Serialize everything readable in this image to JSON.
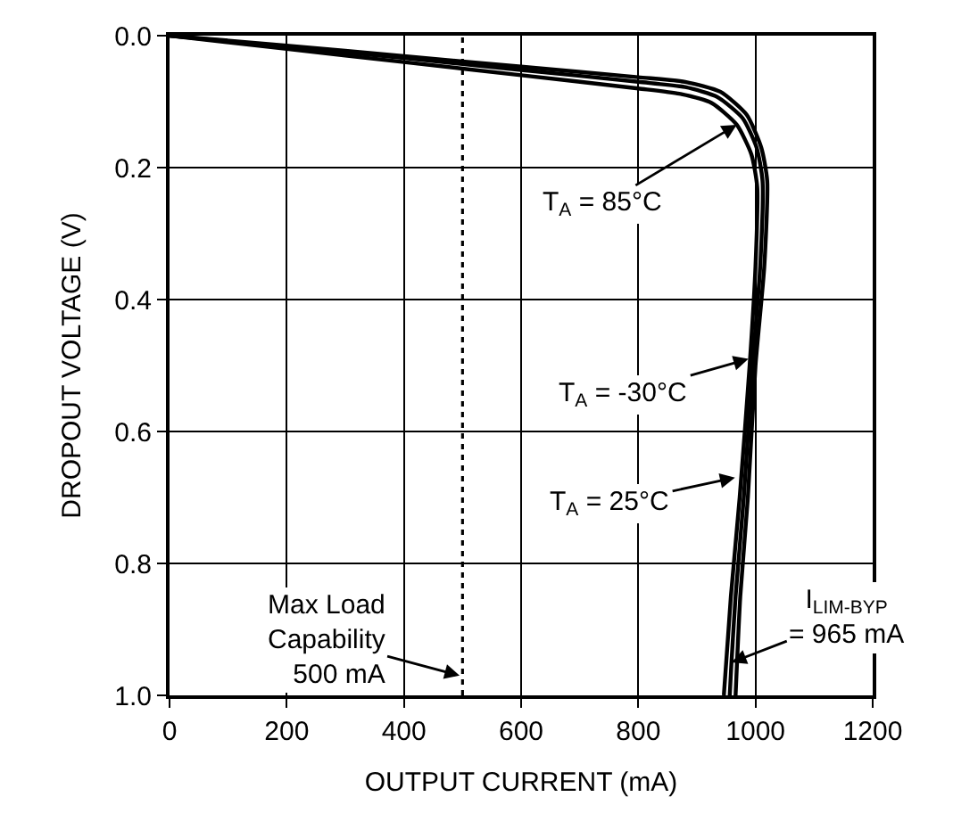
{
  "chart_data": {
    "type": "line",
    "xlabel": "OUTPUT CURRENT (mA)",
    "ylabel": "DROPOUT VOLTAGE (V)",
    "xlim": [
      0,
      1200
    ],
    "xticks": [
      0,
      200,
      400,
      600,
      800,
      1000,
      1200
    ],
    "ylim": [
      1.0,
      0.0
    ],
    "yticks": [
      {
        "value": 0,
        "label": "0.0"
      },
      {
        "value": 0.2,
        "label": "0.2"
      },
      {
        "value": 0.4,
        "label": "0.4"
      },
      {
        "value": 0.6,
        "label": "0.6"
      },
      {
        "value": 0.8,
        "label": "0.8"
      },
      {
        "value": 1.0,
        "label": "1.0"
      }
    ],
    "grid": true,
    "marker": "none",
    "line_style": "solid",
    "series": [
      {
        "color": "#000000",
        "x": [
          0,
          200,
          400,
          600,
          800,
          880,
          940,
          985,
          1010,
          1020,
          1015,
          1000,
          987,
          974,
          966
        ],
        "values": [
          0,
          0.015,
          0.031,
          0.047,
          0.063,
          0.07,
          0.085,
          0.12,
          0.17,
          0.22,
          0.35,
          0.5,
          0.7,
          0.85,
          1.0
        ]
      },
      {
        "color": "#000000",
        "x": [
          0,
          200,
          400,
          600,
          800,
          880,
          935,
          978,
          1002,
          1012,
          1008,
          995,
          980,
          966,
          959,
          956
        ],
        "values": [
          0,
          0.017,
          0.034,
          0.052,
          0.07,
          0.078,
          0.093,
          0.125,
          0.17,
          0.22,
          0.35,
          0.5,
          0.7,
          0.85,
          0.95,
          1.0
        ]
      },
      {
        "color": "#000000",
        "x": [
          0,
          200,
          400,
          600,
          800,
          870,
          925,
          968,
          993,
          1003,
          1000,
          990,
          973,
          958,
          946
        ],
        "values": [
          0,
          0.02,
          0.04,
          0.06,
          0.08,
          0.088,
          0.102,
          0.135,
          0.18,
          0.23,
          0.35,
          0.5,
          0.7,
          0.85,
          1.0
        ]
      }
    ],
    "ref_lines": [
      {
        "axis": "x",
        "value": 500,
        "line_style": "dotted",
        "color": "#000000"
      }
    ],
    "annotations": [
      {
        "text": "T$_{A}$ = 85°C",
        "x": 968,
        "y": 0.135
      },
      {
        "text": "T$_{A}$ = -30°C",
        "x": 988,
        "y": 0.49
      },
      {
        "text": "T$_{A}$ = 25°C",
        "x": 965,
        "y": 0.67
      },
      {
        "text": "I$_{LIM-BYP}$\n= 965 mA",
        "x": 959,
        "y": 0.95
      },
      {
        "text": "Max Load\nCapability\n500 mA",
        "x": 495,
        "y": 0.97
      }
    ]
  }
}
